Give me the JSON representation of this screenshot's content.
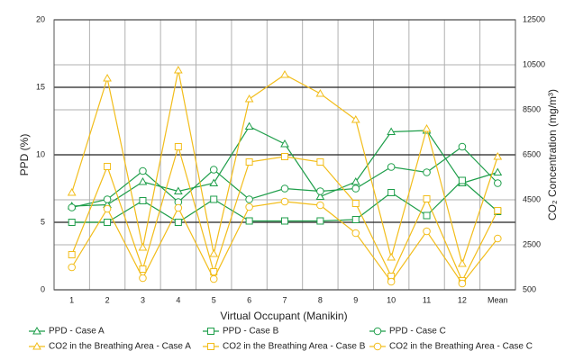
{
  "chart_data": {
    "type": "line",
    "categories": [
      "1",
      "2",
      "3",
      "4",
      "5",
      "6",
      "7",
      "8",
      "9",
      "10",
      "11",
      "12",
      "Mean"
    ],
    "x_label": "Virtual Occupant (Manikin)",
    "y_label": "PPD (%)",
    "y2_label": "CO₂ Concentration (mg/m³)",
    "ylim": [
      0,
      20
    ],
    "yticks": [
      0,
      5,
      10,
      15,
      20
    ],
    "y2lim": [
      500,
      12500
    ],
    "y2ticks": [
      500,
      2500,
      4500,
      6500,
      8500,
      10500,
      12500
    ],
    "grid": true,
    "series": [
      {
        "name": "PPD - Case A",
        "color": "#1e9e4a",
        "marker": "triangle",
        "values": [
          6.2,
          6.3,
          8.0,
          7.3,
          7.9,
          12.1,
          10.8,
          6.9,
          8.0,
          11.7,
          11.8,
          7.9,
          8.7
        ]
      },
      {
        "name": "PPD - Case B",
        "color": "#1e9e4a",
        "marker": "square",
        "values": [
          5.0,
          5.0,
          6.6,
          5.0,
          6.7,
          5.1,
          5.1,
          5.1,
          5.2,
          7.2,
          5.5,
          8.1,
          5.8
        ]
      },
      {
        "name": "PPD - Case C",
        "color": "#1e9e4a",
        "marker": "circle",
        "values": [
          6.1,
          6.7,
          8.8,
          6.5,
          8.9,
          6.7,
          7.5,
          7.3,
          7.5,
          9.1,
          8.7,
          10.6,
          7.9
        ]
      },
      {
        "name": "CO2 in the Breathing Area - Case A",
        "color": "#f2bd1a",
        "marker": "triangle",
        "axis": "y2",
        "values": [
          4820,
          9900,
          2380,
          10260,
          2100,
          8980,
          10060,
          9220,
          8060,
          1940,
          7660,
          1660,
          6420
        ]
      },
      {
        "name": "CO2 in the Breathing Area - Case B",
        "color": "#f2bd1a",
        "marker": "square",
        "axis": "y2",
        "values": [
          2060,
          5980,
          1420,
          6860,
          1300,
          6180,
          6420,
          6180,
          4340,
          1100,
          4540,
          900,
          4020
        ]
      },
      {
        "name": "CO2 in the Breathing Area - Case C",
        "color": "#f2bd1a",
        "marker": "circle",
        "axis": "y2",
        "values": [
          1500,
          4100,
          1020,
          4140,
          980,
          4180,
          4420,
          4260,
          3020,
          860,
          3100,
          780,
          2780
        ]
      }
    ]
  }
}
